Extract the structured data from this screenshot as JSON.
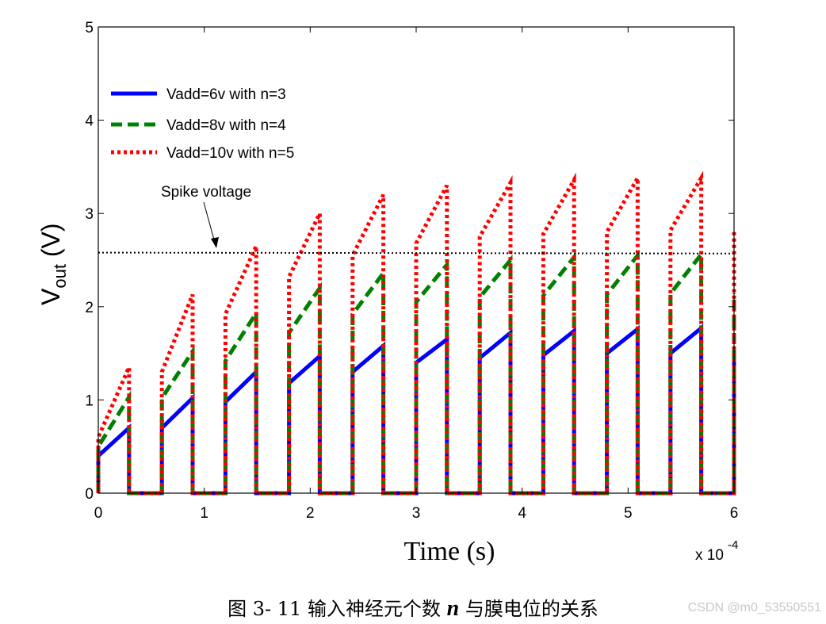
{
  "chart_data": {
    "type": "line",
    "xlabel": "Time (s)",
    "ylabel_main": "V",
    "ylabel_sub": "out",
    "ylabel_unit": " (V)",
    "x_multiplier_base": "x 10",
    "x_multiplier_exp": "-4",
    "xlim": [
      0,
      6
    ],
    "ylim": [
      0,
      5
    ],
    "xticks": [
      0,
      1,
      2,
      3,
      4,
      5,
      6
    ],
    "yticks": [
      0,
      1,
      2,
      3,
      4,
      5
    ],
    "grid": false,
    "legend_position": "top-left",
    "spike_period": 0.6,
    "pulse_start": 0.29,
    "pulse_end": 0.59,
    "series": [
      {
        "name": "Vadd=6v with n=3",
        "color": "#0000ff",
        "style": "solid",
        "ramps": [
          [
            0.4,
            0.7
          ],
          [
            0.7,
            1.02
          ],
          [
            0.98,
            1.3
          ],
          [
            1.18,
            1.47
          ],
          [
            1.3,
            1.58
          ],
          [
            1.4,
            1.65
          ],
          [
            1.45,
            1.72
          ],
          [
            1.48,
            1.74
          ],
          [
            1.5,
            1.76
          ],
          [
            1.5,
            1.77
          ]
        ]
      },
      {
        "name": "Vadd=8v with n=4",
        "color": "#008000",
        "style": "dashed",
        "ramps": [
          [
            0.5,
            1.03
          ],
          [
            1.02,
            1.52
          ],
          [
            1.42,
            1.93
          ],
          [
            1.72,
            2.2
          ],
          [
            1.92,
            2.36
          ],
          [
            2.05,
            2.45
          ],
          [
            2.1,
            2.5
          ],
          [
            2.12,
            2.53
          ],
          [
            2.13,
            2.55
          ],
          [
            2.14,
            2.56
          ]
        ]
      },
      {
        "name": "Vadd=10v with n=5",
        "color": "#ff0000",
        "style": "dotted",
        "ramps": [
          [
            0.6,
            1.35
          ],
          [
            1.3,
            2.13
          ],
          [
            1.92,
            2.65
          ],
          [
            2.32,
            3.0
          ],
          [
            2.55,
            3.2
          ],
          [
            2.68,
            3.3
          ],
          [
            2.75,
            3.33
          ],
          [
            2.78,
            3.36
          ],
          [
            2.8,
            3.38
          ],
          [
            2.82,
            3.38
          ]
        ]
      }
    ],
    "reference_line": {
      "label": "Spike voltage",
      "y_start": 2.58,
      "y_end": 2.57,
      "color": "#000000",
      "style": "dotted"
    }
  },
  "caption": {
    "prefix": "图 3- 11  输入神经元个数",
    "variable": "n",
    "suffix": "与膜电位的关系"
  },
  "watermark": "CSDN @m0_53550551"
}
